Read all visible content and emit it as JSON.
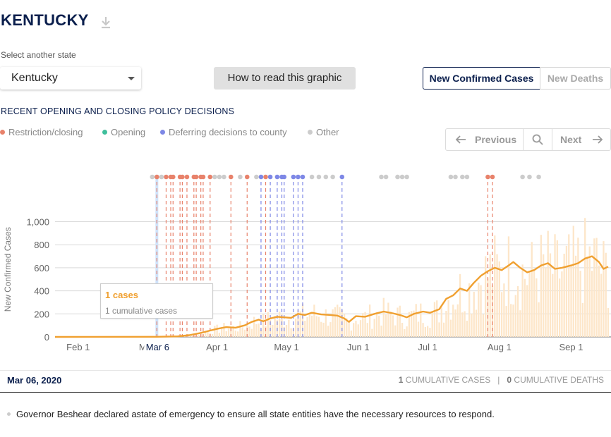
{
  "header": {
    "title": "KENTUCKY",
    "download_icon": "download-icon"
  },
  "state_picker": {
    "label": "Select another state",
    "value": "Kentucky"
  },
  "howto_button": "How to read this graphic",
  "metric_toggle": {
    "active": "New Confirmed Cases",
    "inactive": "New Deaths",
    "active_color": "#0b1f4d"
  },
  "policy": {
    "title": "RECENT OPENING AND CLOSING POLICY DECISIONS",
    "legend": [
      {
        "label": "Restriction/closing",
        "color": "#e8826b"
      },
      {
        "label": "Opening",
        "color": "#3fbf9c"
      },
      {
        "label": "Deferring decisions to county",
        "color": "#7e88e6"
      },
      {
        "label": "Other",
        "color": "#cccccc"
      }
    ]
  },
  "nav": {
    "previous": "Previous",
    "next": "Next",
    "prev_icon": "arrow-left-icon",
    "search_icon": "search-icon",
    "next_icon": "arrow-right-icon"
  },
  "chart_data": {
    "type": "line",
    "ylabel": "New Confirmed Cases",
    "ylim": [
      0,
      1000
    ],
    "yticks": [
      0,
      200,
      400,
      600,
      800,
      1000
    ],
    "ytick_labels": [
      "0",
      "200",
      "400",
      "600",
      "800",
      "1,000"
    ],
    "x_start": "2020-01-22",
    "x_end": "2020-09-17",
    "xticks": [
      {
        "date": "2020-02-01",
        "label": "Feb 1"
      },
      {
        "date": "2020-03-01",
        "label": "Ma"
      },
      {
        "date": "2020-04-01",
        "label": "Apr 1"
      },
      {
        "date": "2020-05-01",
        "label": "May 1"
      },
      {
        "date": "2020-06-01",
        "label": "Jun 1"
      },
      {
        "date": "2020-07-01",
        "label": "Jul 1"
      },
      {
        "date": "2020-08-01",
        "label": "Aug 1"
      },
      {
        "date": "2020-09-01",
        "label": "Sep 1"
      }
    ],
    "selected": {
      "date": "2020-03-06",
      "label": "Mar 6"
    },
    "series": [
      {
        "line_color": "#f0a030",
        "bar_color": "#fde6c9",
        "points": [
          [
            "2020-01-22",
            0
          ],
          [
            "2020-03-06",
            1
          ],
          [
            "2020-03-15",
            5
          ],
          [
            "2020-03-20",
            15
          ],
          [
            "2020-03-25",
            35
          ],
          [
            "2020-03-29",
            55
          ],
          [
            "2020-04-01",
            70
          ],
          [
            "2020-04-05",
            85
          ],
          [
            "2020-04-09",
            80
          ],
          [
            "2020-04-13",
            100
          ],
          [
            "2020-04-16",
            130
          ],
          [
            "2020-04-19",
            150
          ],
          [
            "2020-04-21",
            135
          ],
          [
            "2020-04-24",
            160
          ],
          [
            "2020-04-27",
            175
          ],
          [
            "2020-04-30",
            170
          ],
          [
            "2020-05-03",
            165
          ],
          [
            "2020-05-06",
            200
          ],
          [
            "2020-05-09",
            190
          ],
          [
            "2020-05-12",
            210
          ],
          [
            "2020-05-16",
            195
          ],
          [
            "2020-05-20",
            190
          ],
          [
            "2020-05-23",
            185
          ],
          [
            "2020-05-26",
            160
          ],
          [
            "2020-05-28",
            130
          ],
          [
            "2020-05-31",
            180
          ],
          [
            "2020-06-04",
            175
          ],
          [
            "2020-06-08",
            200
          ],
          [
            "2020-06-12",
            220
          ],
          [
            "2020-06-16",
            205
          ],
          [
            "2020-06-19",
            190
          ],
          [
            "2020-06-22",
            170
          ],
          [
            "2020-06-25",
            200
          ],
          [
            "2020-06-29",
            220
          ],
          [
            "2020-07-02",
            210
          ],
          [
            "2020-07-06",
            240
          ],
          [
            "2020-07-09",
            330
          ],
          [
            "2020-07-12",
            360
          ],
          [
            "2020-07-15",
            420
          ],
          [
            "2020-07-18",
            400
          ],
          [
            "2020-07-21",
            470
          ],
          [
            "2020-07-24",
            530
          ],
          [
            "2020-07-27",
            570
          ],
          [
            "2020-07-30",
            600
          ],
          [
            "2020-08-02",
            580
          ],
          [
            "2020-08-05",
            620
          ],
          [
            "2020-08-07",
            650
          ],
          [
            "2020-08-10",
            600
          ],
          [
            "2020-08-13",
            560
          ],
          [
            "2020-08-16",
            580
          ],
          [
            "2020-08-19",
            620
          ],
          [
            "2020-08-22",
            640
          ],
          [
            "2020-08-25",
            590
          ],
          [
            "2020-08-28",
            600
          ],
          [
            "2020-09-01",
            620
          ],
          [
            "2020-09-04",
            640
          ],
          [
            "2020-09-07",
            680
          ],
          [
            "2020-09-10",
            700
          ],
          [
            "2020-09-13",
            650
          ],
          [
            "2020-09-15",
            590
          ],
          [
            "2020-09-17",
            610
          ]
        ]
      }
    ],
    "policy_markers": [
      {
        "date": "2020-03-06",
        "type": "restriction"
      },
      {
        "date": "2020-03-10",
        "type": "restriction"
      },
      {
        "date": "2020-03-12",
        "type": "restriction"
      },
      {
        "date": "2020-03-13",
        "type": "restriction"
      },
      {
        "date": "2020-03-16",
        "type": "restriction"
      },
      {
        "date": "2020-03-17",
        "type": "restriction"
      },
      {
        "date": "2020-03-19",
        "type": "restriction"
      },
      {
        "date": "2020-03-22",
        "type": "restriction"
      },
      {
        "date": "2020-03-23",
        "type": "restriction"
      },
      {
        "date": "2020-03-25",
        "type": "restriction"
      },
      {
        "date": "2020-03-26",
        "type": "restriction"
      },
      {
        "date": "2020-03-29",
        "type": "restriction"
      },
      {
        "date": "2020-04-07",
        "type": "restriction"
      },
      {
        "date": "2020-04-14",
        "type": "restriction"
      },
      {
        "date": "2020-04-20",
        "type": "deferring"
      },
      {
        "date": "2020-04-22",
        "type": "restriction"
      },
      {
        "date": "2020-04-24",
        "type": "deferring"
      },
      {
        "date": "2020-04-27",
        "type": "deferring"
      },
      {
        "date": "2020-04-29",
        "type": "deferring"
      },
      {
        "date": "2020-04-30",
        "type": "deferring"
      },
      {
        "date": "2020-05-04",
        "type": "deferring"
      },
      {
        "date": "2020-05-06",
        "type": "deferring"
      },
      {
        "date": "2020-05-08",
        "type": "deferring"
      },
      {
        "date": "2020-05-25",
        "type": "deferring"
      },
      {
        "date": "2020-07-27",
        "type": "restriction"
      },
      {
        "date": "2020-07-29",
        "type": "restriction"
      }
    ],
    "other_markers": [
      "2020-03-04",
      "2020-03-06",
      "2020-03-08",
      "2020-03-31",
      "2020-04-02",
      "2020-04-04",
      "2020-04-11",
      "2020-04-18",
      "2020-05-12",
      "2020-05-15",
      "2020-05-18",
      "2020-05-21",
      "2020-06-11",
      "2020-06-13",
      "2020-06-18",
      "2020-06-20",
      "2020-06-22",
      "2020-07-11",
      "2020-07-13",
      "2020-07-16",
      "2020-07-18",
      "2020-08-11",
      "2020-08-14",
      "2020-08-18"
    ]
  },
  "tooltip": {
    "cases": "1 cases",
    "cumulative": "1 cumulative cases"
  },
  "footer": {
    "date": "Mar 06, 2020",
    "cum_cases_num": "1",
    "cum_cases_label": " CUMULATIVE CASES",
    "separator": "|",
    "cum_deaths_num": "0",
    "cum_deaths_label": " CUMULATIVE DEATHS",
    "note": "Governor Beshear declared astate of emergency to ensure all state entities have the necessary resources to respond."
  }
}
